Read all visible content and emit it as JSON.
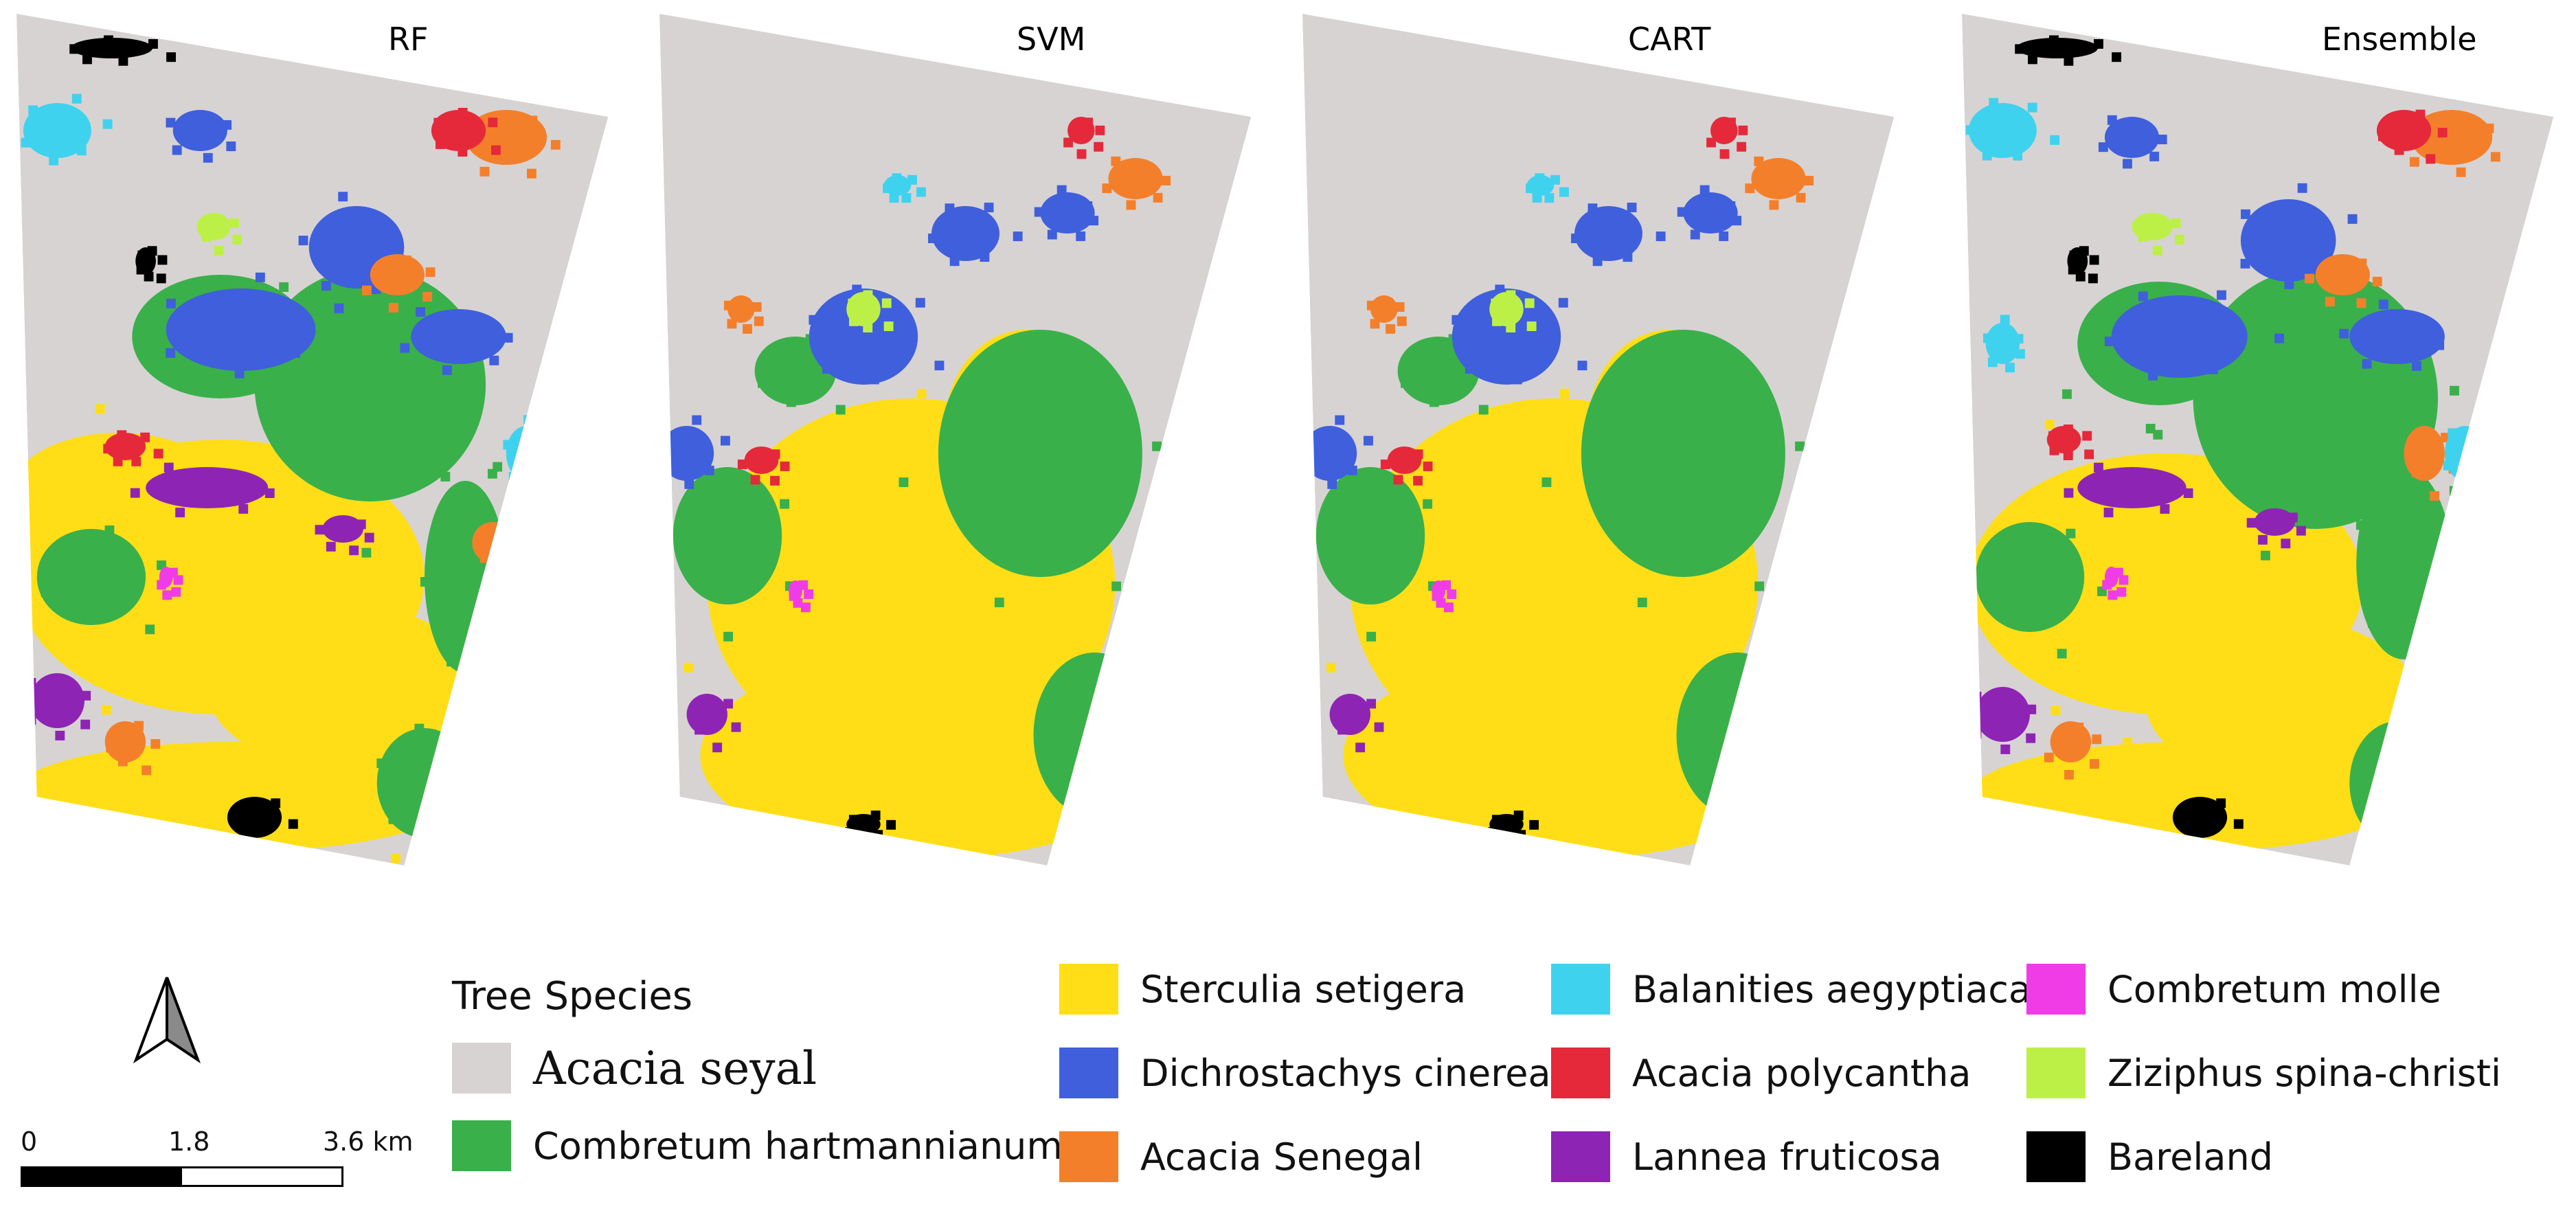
{
  "maps": [
    {
      "id": "rf",
      "title": "RF"
    },
    {
      "id": "svm",
      "title": "SVM"
    },
    {
      "id": "cart",
      "title": "CART"
    },
    {
      "id": "ensemble",
      "title": "Ensemble"
    }
  ],
  "legend": {
    "title": "Tree Species",
    "items": [
      {
        "label": "Acacia seyal",
        "color": "#d7d3d3"
      },
      {
        "label": "Combretum hartmannianum",
        "color": "#3ab04a"
      },
      {
        "label": "Sterculia setigera",
        "color": "#ffde17"
      },
      {
        "label": "Dichrostachys cinerea",
        "color": "#3f5fdc"
      },
      {
        "label": "Acacia Senegal",
        "color": "#f47f2b"
      },
      {
        "label": "Balanities aegyptiaca",
        "color": "#3fd2ef"
      },
      {
        "label": "Acacia polycantha",
        "color": "#e5293a"
      },
      {
        "label": "Lannea fruticosa",
        "color": "#8e24b4"
      },
      {
        "label": "Combretum molle",
        "color": "#f03ce6"
      },
      {
        "label": "Ziziphus spina-christi",
        "color": "#bdf046"
      },
      {
        "label": "Bareland",
        "color": "#000000"
      }
    ]
  },
  "scale": {
    "labels": [
      "0",
      "1.8",
      "3.6 km"
    ]
  },
  "north_arrow": {
    "icon": "north-arrow-icon"
  }
}
